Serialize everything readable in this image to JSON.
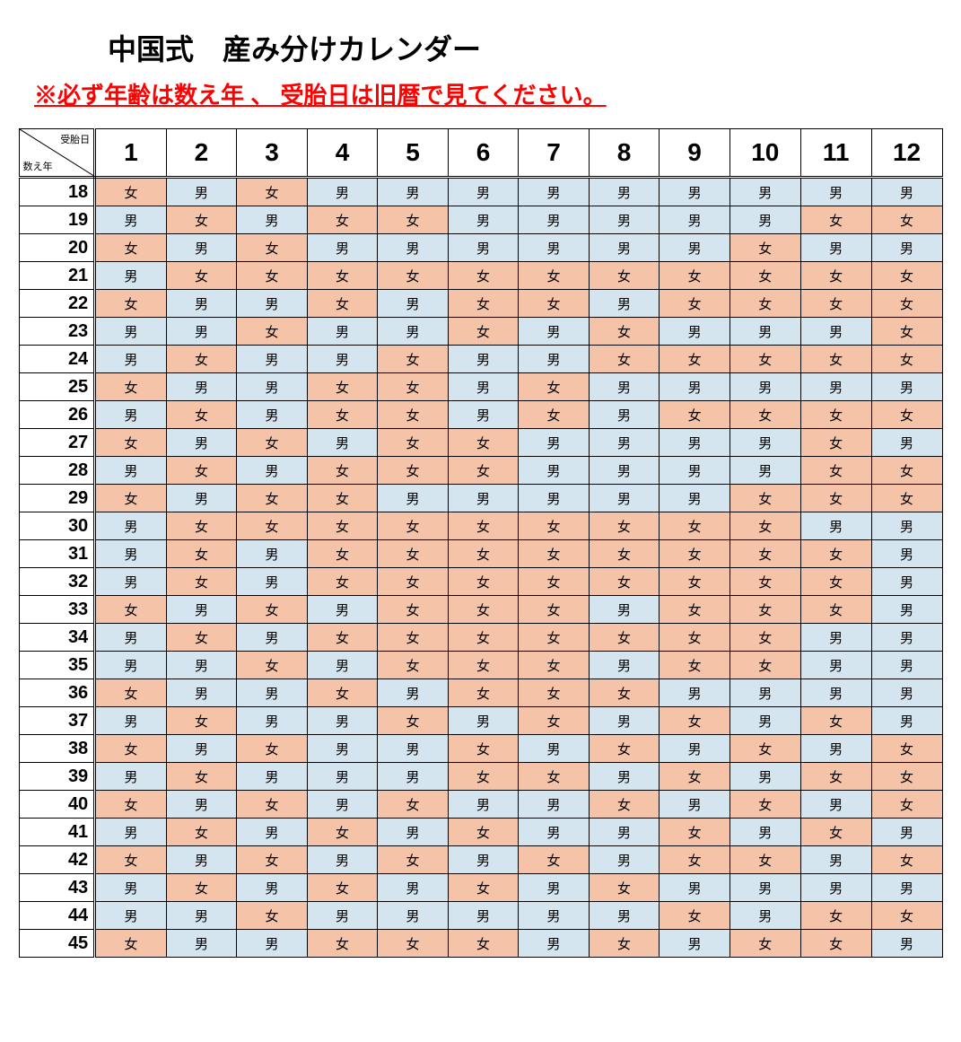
{
  "title": "中国式　産み分けカレンダー",
  "warning": "※必ず年齢は数え年 、 受胎日は旧暦で見てください。",
  "corner_top": "受胎日",
  "corner_bottom": "数え年",
  "months": [
    "1",
    "2",
    "3",
    "4",
    "5",
    "6",
    "7",
    "8",
    "9",
    "10",
    "11",
    "12"
  ],
  "ages": [
    "18",
    "19",
    "20",
    "21",
    "22",
    "23",
    "24",
    "25",
    "26",
    "27",
    "28",
    "29",
    "30",
    "31",
    "32",
    "33",
    "34",
    "35",
    "36",
    "37",
    "38",
    "39",
    "40",
    "41",
    "42",
    "43",
    "44",
    "45"
  ],
  "label_female": "女",
  "label_male": "男",
  "color_female": "#f4c3a8",
  "color_male": "#d5e5ef",
  "grid": [
    [
      "女",
      "男",
      "女",
      "男",
      "男",
      "男",
      "男",
      "男",
      "男",
      "男",
      "男",
      "男"
    ],
    [
      "男",
      "女",
      "男",
      "女",
      "女",
      "男",
      "男",
      "男",
      "男",
      "男",
      "女",
      "女"
    ],
    [
      "女",
      "男",
      "女",
      "男",
      "男",
      "男",
      "男",
      "男",
      "男",
      "女",
      "男",
      "男"
    ],
    [
      "男",
      "女",
      "女",
      "女",
      "女",
      "女",
      "女",
      "女",
      "女",
      "女",
      "女",
      "女"
    ],
    [
      "女",
      "男",
      "男",
      "女",
      "男",
      "女",
      "女",
      "男",
      "女",
      "女",
      "女",
      "女"
    ],
    [
      "男",
      "男",
      "女",
      "男",
      "男",
      "女",
      "男",
      "女",
      "男",
      "男",
      "男",
      "女"
    ],
    [
      "男",
      "女",
      "男",
      "男",
      "女",
      "男",
      "男",
      "女",
      "女",
      "女",
      "女",
      "女"
    ],
    [
      "女",
      "男",
      "男",
      "女",
      "女",
      "男",
      "女",
      "男",
      "男",
      "男",
      "男",
      "男"
    ],
    [
      "男",
      "女",
      "男",
      "女",
      "女",
      "男",
      "女",
      "男",
      "女",
      "女",
      "女",
      "女"
    ],
    [
      "女",
      "男",
      "女",
      "男",
      "女",
      "女",
      "男",
      "男",
      "男",
      "男",
      "女",
      "男"
    ],
    [
      "男",
      "女",
      "男",
      "女",
      "女",
      "女",
      "男",
      "男",
      "男",
      "男",
      "女",
      "女"
    ],
    [
      "女",
      "男",
      "女",
      "女",
      "男",
      "男",
      "男",
      "男",
      "男",
      "女",
      "女",
      "女"
    ],
    [
      "男",
      "女",
      "女",
      "女",
      "女",
      "女",
      "女",
      "女",
      "女",
      "女",
      "男",
      "男"
    ],
    [
      "男",
      "女",
      "男",
      "女",
      "女",
      "女",
      "女",
      "女",
      "女",
      "女",
      "女",
      "男"
    ],
    [
      "男",
      "女",
      "男",
      "女",
      "女",
      "女",
      "女",
      "女",
      "女",
      "女",
      "女",
      "男"
    ],
    [
      "女",
      "男",
      "女",
      "男",
      "女",
      "女",
      "女",
      "男",
      "女",
      "女",
      "女",
      "男"
    ],
    [
      "男",
      "女",
      "男",
      "女",
      "女",
      "女",
      "女",
      "女",
      "女",
      "女",
      "男",
      "男"
    ],
    [
      "男",
      "男",
      "女",
      "男",
      "女",
      "女",
      "女",
      "男",
      "女",
      "女",
      "男",
      "男"
    ],
    [
      "女",
      "男",
      "男",
      "女",
      "男",
      "女",
      "女",
      "女",
      "男",
      "男",
      "男",
      "男"
    ],
    [
      "男",
      "女",
      "男",
      "男",
      "女",
      "男",
      "女",
      "男",
      "女",
      "男",
      "女",
      "男"
    ],
    [
      "女",
      "男",
      "女",
      "男",
      "男",
      "女",
      "男",
      "女",
      "男",
      "女",
      "男",
      "女"
    ],
    [
      "男",
      "女",
      "男",
      "男",
      "男",
      "女",
      "女",
      "男",
      "女",
      "男",
      "女",
      "女"
    ],
    [
      "女",
      "男",
      "女",
      "男",
      "女",
      "男",
      "男",
      "女",
      "男",
      "女",
      "男",
      "女"
    ],
    [
      "男",
      "女",
      "男",
      "女",
      "男",
      "女",
      "男",
      "男",
      "女",
      "男",
      "女",
      "男"
    ],
    [
      "女",
      "男",
      "女",
      "男",
      "女",
      "男",
      "女",
      "男",
      "女",
      "女",
      "男",
      "女"
    ],
    [
      "男",
      "女",
      "男",
      "女",
      "男",
      "女",
      "男",
      "女",
      "男",
      "男",
      "男",
      "男"
    ],
    [
      "男",
      "男",
      "女",
      "男",
      "男",
      "男",
      "男",
      "男",
      "女",
      "男",
      "女",
      "女"
    ],
    [
      "女",
      "男",
      "男",
      "女",
      "女",
      "女",
      "男",
      "女",
      "男",
      "女",
      "女",
      "男"
    ]
  ]
}
